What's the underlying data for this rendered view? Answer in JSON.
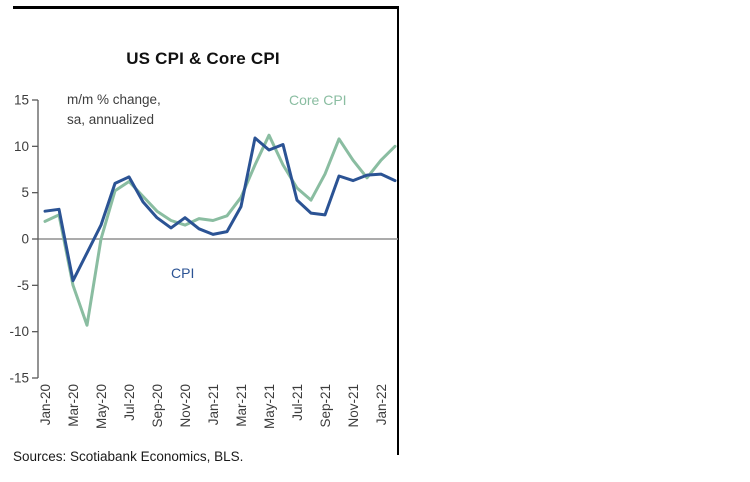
{
  "labels": {
    "title": "US CPI & Core CPI",
    "annotation_line1": "m/m % change,",
    "annotation_line2": "sa, annualized",
    "core_cpi": "Core CPI",
    "cpi": "CPI",
    "sources": "Sources: Scotiabank Economics, BLS."
  },
  "colors": {
    "cpi": "#2b5394",
    "core_cpi": "#8abda1",
    "zero_line": "#8f8f8f",
    "axis": "#595959",
    "text": "#3d3d3d",
    "frame": "#000000"
  },
  "chart_data": {
    "type": "line",
    "title": "US CPI & Core CPI",
    "subtitle": "m/m % change, sa, annualized",
    "x": [
      "Jan-20",
      "Feb-20",
      "Mar-20",
      "Apr-20",
      "May-20",
      "Jun-20",
      "Jul-20",
      "Aug-20",
      "Sep-20",
      "Oct-20",
      "Nov-20",
      "Dec-20",
      "Jan-21",
      "Feb-21",
      "Mar-21",
      "Apr-21",
      "May-21",
      "Jun-21",
      "Jul-21",
      "Aug-21",
      "Sep-21",
      "Oct-21",
      "Nov-21",
      "Dec-21",
      "Jan-22",
      "Feb-22"
    ],
    "x_tick_step": 2,
    "x_tick_labels": [
      "Jan-20",
      "Mar-20",
      "May-20",
      "Jul-20",
      "Sep-20",
      "Nov-20",
      "Jan-21",
      "Mar-21",
      "May-21",
      "Jul-21",
      "Sep-21",
      "Nov-21",
      "Jan-22"
    ],
    "ylim": [
      -15,
      15
    ],
    "yticks": [
      -15,
      -10,
      -5,
      0,
      5,
      10,
      15
    ],
    "zero_line": true,
    "grid": false,
    "legend_position": "inline-labels",
    "series": [
      {
        "name": "CPI",
        "color": "#2b5394",
        "values": [
          3.0,
          3.2,
          -4.5,
          -1.5,
          1.5,
          6.0,
          6.7,
          4.0,
          2.3,
          1.2,
          2.3,
          1.1,
          0.5,
          0.8,
          3.5,
          10.9,
          9.6,
          10.2,
          4.2,
          2.8,
          2.6,
          6.8,
          6.3,
          6.9,
          7.0,
          6.3
        ]
      },
      {
        "name": "Core CPI",
        "color": "#8abda1",
        "values": [
          1.9,
          2.6,
          -5.0,
          -9.3,
          0.0,
          5.2,
          6.2,
          4.6,
          3.0,
          2.0,
          1.5,
          2.2,
          2.0,
          2.5,
          4.5,
          8.0,
          11.2,
          8.0,
          5.5,
          4.2,
          7.0,
          10.8,
          8.5,
          6.6,
          8.5,
          10.0
        ]
      }
    ],
    "sources": "Sources: Scotiabank Economics, BLS."
  }
}
